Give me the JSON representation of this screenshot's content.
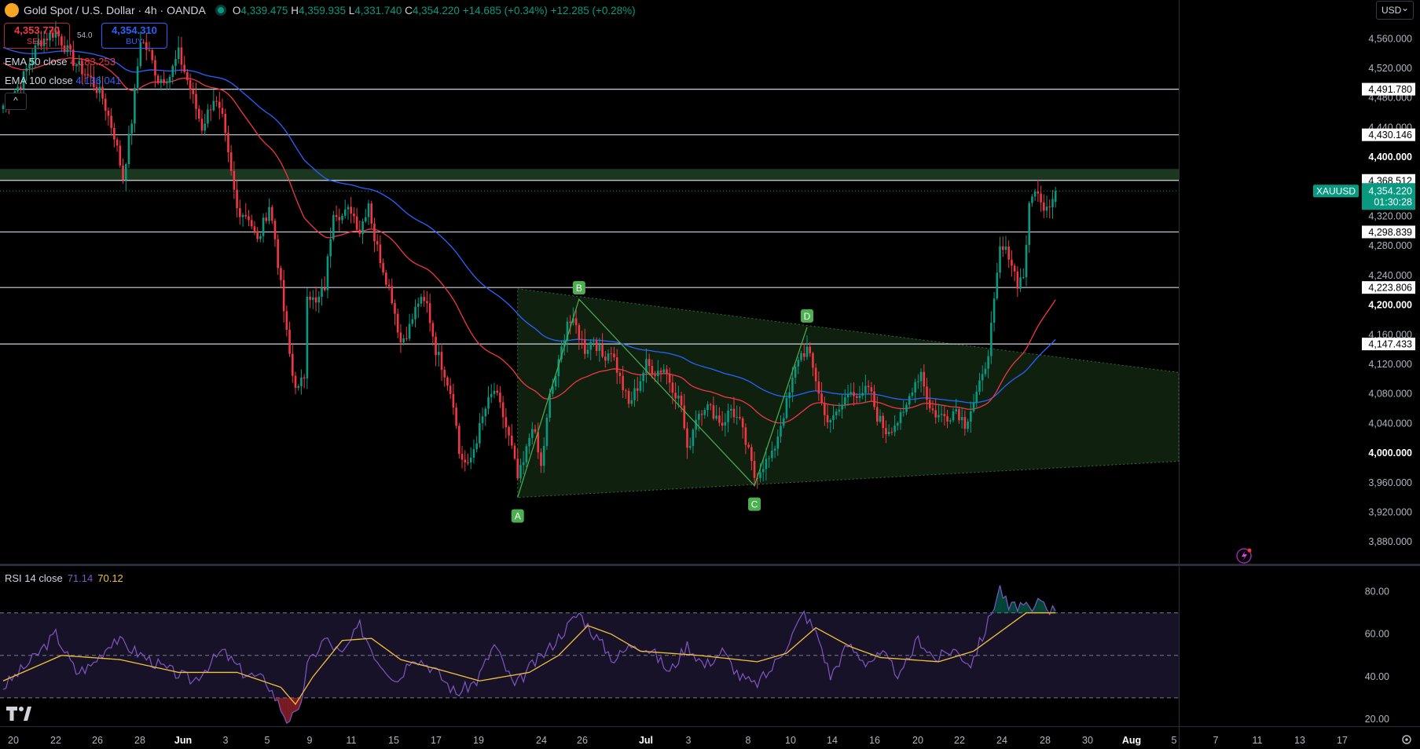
{
  "header": {
    "title": "Gold Spot / U.S. Dollar · 4h · OANDA",
    "open": "4,339.475",
    "high": "4,359.935",
    "low": "4,331.740",
    "close": "4,354.220",
    "change": "+14.685 (+0.34%)",
    "change2": "+12.285 (+0.28%)",
    "o_label": "O",
    "h_label": "H",
    "l_label": "L",
    "c_label": "C"
  },
  "trade": {
    "sell_price": "4,353.770",
    "sell_label": "SELL",
    "buy_price": "4,354.310",
    "buy_label": "BUY",
    "spread": "54.0"
  },
  "indicators": {
    "ema50_label": "EMA 50 close",
    "ema50_value": "4,183.253",
    "ema100_label": "EMA 100 close",
    "ema100_value": "4,136.041",
    "rsi_label": "RSI 14 close",
    "rsi_value": "71.14",
    "rsi_ma_value": "70.12"
  },
  "currency_selector": "USD",
  "colors": {
    "up": "#089981",
    "down": "#f23645",
    "ema50": "#f23645",
    "ema100": "#2962ff",
    "rsi": "#7e57c2",
    "rsi_ma": "#f0c23c",
    "pattern_fill": "#1b3a1c",
    "pattern_label": "#4caf50"
  },
  "chart_data": {
    "type": "candlestick",
    "symbol": "XAUUSD",
    "timeframe": "4h",
    "ylim": [
      3845,
      4590
    ],
    "price_ticks": [
      "4,560.000",
      "4,520.000",
      "4,480.000",
      "4,440.000",
      "4,400.000",
      "4,360.000",
      "4,320.000",
      "4,280.000",
      "4,240.000",
      "4,200.000",
      "4,160.000",
      "4,120.000",
      "4,080.000",
      "4,040.000",
      "4,000.000",
      "3,960.000",
      "3,920.000",
      "3,880.000"
    ],
    "x_ticks": [
      "20",
      "22",
      "26",
      "28",
      "Jun",
      "3",
      "5",
      "9",
      "11",
      "15",
      "17",
      "19",
      "24",
      "26",
      "Jul",
      "3",
      "8",
      "10",
      "14",
      "16",
      "20",
      "22",
      "24",
      "28",
      "30",
      "Aug",
      "5",
      "7",
      "11",
      "13",
      "17"
    ],
    "levels": [
      {
        "value": 4491.78,
        "label": "4,491.780"
      },
      {
        "value": 4430.146,
        "label": "4,430.146"
      },
      {
        "value": 4368.512,
        "label": "4,368.512"
      },
      {
        "value": 4298.839,
        "label": "4,298.839"
      },
      {
        "value": 4223.806,
        "label": "4,223.806"
      },
      {
        "value": 4147.433,
        "label": "4,147.433"
      }
    ],
    "current_price": {
      "symbol": "XAUUSD",
      "value": 4354.22,
      "label": "4,354.220",
      "countdown": "01:30:28"
    },
    "supply_zone": [
      4368.5,
      4384
    ],
    "pattern_points": [
      {
        "label": "A",
        "bar": 176,
        "price": 3940
      },
      {
        "label": "B",
        "bar": 197,
        "price": 4208
      },
      {
        "label": "C",
        "bar": 257,
        "price": 3956
      },
      {
        "label": "D",
        "bar": 275,
        "price": 4170
      }
    ],
    "triangle": {
      "upper": [
        [
          176,
          4222
        ],
        [
          383,
          4109
        ]
      ],
      "lower": [
        [
          176,
          3940
        ],
        [
          383,
          3989
        ]
      ]
    },
    "keypoints": [
      [
        0,
        4470
      ],
      [
        6,
        4500
      ],
      [
        12,
        4555
      ],
      [
        18,
        4570
      ],
      [
        24,
        4530
      ],
      [
        30,
        4505
      ],
      [
        34,
        4480
      ],
      [
        38,
        4430
      ],
      [
        41,
        4372
      ],
      [
        44,
        4450
      ],
      [
        47,
        4560
      ],
      [
        50,
        4540
      ],
      [
        53,
        4505
      ],
      [
        57,
        4510
      ],
      [
        60,
        4540
      ],
      [
        64,
        4492
      ],
      [
        68,
        4440
      ],
      [
        72,
        4480
      ],
      [
        75,
        4450
      ],
      [
        77,
        4400
      ],
      [
        80,
        4330
      ],
      [
        84,
        4320
      ],
      [
        87,
        4285
      ],
      [
        91,
        4335
      ],
      [
        93,
        4290
      ],
      [
        95,
        4225
      ],
      [
        97,
        4160
      ],
      [
        99,
        4105
      ],
      [
        101,
        4085
      ],
      [
        103,
        4105
      ],
      [
        104,
        4220
      ],
      [
        107,
        4200
      ],
      [
        110,
        4225
      ],
      [
        113,
        4330
      ],
      [
        116,
        4320
      ],
      [
        119,
        4330
      ],
      [
        122,
        4300
      ],
      [
        125,
        4340
      ],
      [
        127,
        4290
      ],
      [
        130,
        4250
      ],
      [
        133,
        4210
      ],
      [
        136,
        4150
      ],
      [
        139,
        4170
      ],
      [
        142,
        4205
      ],
      [
        145,
        4200
      ],
      [
        148,
        4140
      ],
      [
        151,
        4110
      ],
      [
        154,
        4070
      ],
      [
        156,
        4000
      ],
      [
        159,
        3980
      ],
      [
        162,
        4020
      ],
      [
        165,
        4060
      ],
      [
        168,
        4085
      ],
      [
        171,
        4050
      ],
      [
        174,
        4005
      ],
      [
        176,
        3965
      ],
      [
        178,
        3985
      ],
      [
        181,
        4040
      ],
      [
        184,
        3980
      ],
      [
        187,
        4075
      ],
      [
        190,
        4120
      ],
      [
        193,
        4180
      ],
      [
        196,
        4170
      ],
      [
        199,
        4140
      ],
      [
        202,
        4155
      ],
      [
        205,
        4130
      ],
      [
        208,
        4140
      ],
      [
        211,
        4100
      ],
      [
        214,
        4065
      ],
      [
        217,
        4090
      ],
      [
        220,
        4120
      ],
      [
        223,
        4110
      ],
      [
        226,
        4115
      ],
      [
        229,
        4090
      ],
      [
        232,
        4065
      ],
      [
        234,
        4000
      ],
      [
        237,
        4050
      ],
      [
        240,
        4065
      ],
      [
        243,
        4055
      ],
      [
        246,
        4040
      ],
      [
        249,
        4060
      ],
      [
        252,
        4040
      ],
      [
        255,
        4000
      ],
      [
        257,
        3968
      ],
      [
        260,
        3985
      ],
      [
        263,
        3995
      ],
      [
        266,
        4040
      ],
      [
        269,
        4080
      ],
      [
        272,
        4130
      ],
      [
        275,
        4140
      ],
      [
        278,
        4100
      ],
      [
        281,
        4050
      ],
      [
        284,
        4045
      ],
      [
        287,
        4065
      ],
      [
        290,
        4090
      ],
      [
        293,
        4070
      ],
      [
        296,
        4090
      ],
      [
        299,
        4050
      ],
      [
        302,
        4030
      ],
      [
        305,
        4040
      ],
      [
        308,
        4050
      ],
      [
        311,
        4090
      ],
      [
        314,
        4110
      ],
      [
        317,
        4060
      ],
      [
        320,
        4050
      ],
      [
        323,
        4050
      ],
      [
        326,
        4060
      ],
      [
        329,
        4040
      ],
      [
        332,
        4070
      ],
      [
        335,
        4100
      ],
      [
        337,
        4140
      ],
      [
        339,
        4200
      ],
      [
        341,
        4275
      ],
      [
        344,
        4270
      ],
      [
        347,
        4230
      ],
      [
        349,
        4240
      ],
      [
        351,
        4330
      ],
      [
        353,
        4360
      ],
      [
        355,
        4335
      ],
      [
        358,
        4339
      ],
      [
        360,
        4354
      ]
    ],
    "rsi": {
      "ylim": [
        10,
        90
      ],
      "ticks": [
        "80.00",
        "60.00",
        "40.00",
        "20.00"
      ],
      "bands": [
        30,
        50,
        70
      ],
      "keypoints": [
        [
          0,
          35
        ],
        [
          10,
          48
        ],
        [
          18,
          60
        ],
        [
          25,
          42
        ],
        [
          30,
          45
        ],
        [
          38,
          58
        ],
        [
          45,
          52
        ],
        [
          55,
          44
        ],
        [
          65,
          38
        ],
        [
          75,
          52
        ],
        [
          82,
          42
        ],
        [
          90,
          38
        ],
        [
          97,
          20
        ],
        [
          101,
          22
        ],
        [
          104,
          45
        ],
        [
          110,
          58
        ],
        [
          116,
          50
        ],
        [
          122,
          64
        ],
        [
          128,
          48
        ],
        [
          135,
          38
        ],
        [
          140,
          50
        ],
        [
          147,
          44
        ],
        [
          155,
          32
        ],
        [
          162,
          38
        ],
        [
          168,
          55
        ],
        [
          175,
          35
        ],
        [
          180,
          44
        ],
        [
          186,
          52
        ],
        [
          192,
          62
        ],
        [
          197,
          70
        ],
        [
          202,
          60
        ],
        [
          209,
          48
        ],
        [
          216,
          56
        ],
        [
          222,
          52
        ],
        [
          228,
          42
        ],
        [
          234,
          55
        ],
        [
          240,
          45
        ],
        [
          246,
          52
        ],
        [
          252,
          40
        ],
        [
          257,
          36
        ],
        [
          262,
          42
        ],
        [
          268,
          55
        ],
        [
          274,
          70
        ],
        [
          279,
          58
        ],
        [
          283,
          40
        ],
        [
          289,
          55
        ],
        [
          295,
          47
        ],
        [
          301,
          50
        ],
        [
          307,
          40
        ],
        [
          313,
          58
        ],
        [
          319,
          48
        ],
        [
          325,
          53
        ],
        [
          331,
          46
        ],
        [
          336,
          62
        ],
        [
          341,
          82
        ],
        [
          344,
          72
        ],
        [
          348,
          74
        ],
        [
          352,
          70
        ],
        [
          355,
          77
        ],
        [
          358,
          72
        ],
        [
          360,
          71
        ]
      ],
      "ma_keypoints": [
        [
          0,
          38
        ],
        [
          20,
          50
        ],
        [
          40,
          48
        ],
        [
          60,
          42
        ],
        [
          80,
          42
        ],
        [
          95,
          35
        ],
        [
          100,
          27
        ],
        [
          106,
          40
        ],
        [
          116,
          57
        ],
        [
          126,
          58
        ],
        [
          136,
          48
        ],
        [
          150,
          43
        ],
        [
          163,
          38
        ],
        [
          180,
          42
        ],
        [
          190,
          50
        ],
        [
          200,
          64
        ],
        [
          208,
          60
        ],
        [
          218,
          52
        ],
        [
          238,
          50
        ],
        [
          258,
          47
        ],
        [
          268,
          51
        ],
        [
          278,
          63
        ],
        [
          290,
          54
        ],
        [
          300,
          49
        ],
        [
          320,
          47
        ],
        [
          332,
          52
        ],
        [
          340,
          60
        ],
        [
          350,
          70
        ],
        [
          360,
          70
        ]
      ]
    }
  }
}
